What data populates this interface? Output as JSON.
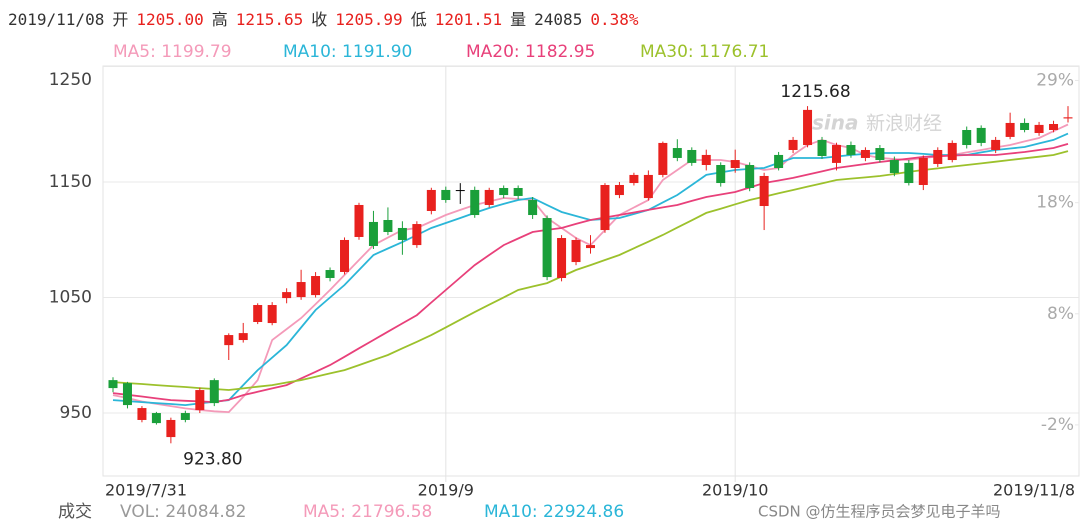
{
  "quote": [
    {
      "text": "2019/11/08",
      "color": "#333333"
    },
    {
      "text": "开",
      "color": "#333333"
    },
    {
      "text": "1205.00",
      "color": "#e8211e"
    },
    {
      "text": "高",
      "color": "#333333"
    },
    {
      "text": "1215.65",
      "color": "#e8211e"
    },
    {
      "text": "收",
      "color": "#333333"
    },
    {
      "text": "1205.99",
      "color": "#e8211e"
    },
    {
      "text": "低",
      "color": "#333333"
    },
    {
      "text": "1201.51",
      "color": "#e8211e"
    },
    {
      "text": "量",
      "color": "#333333"
    },
    {
      "text": "24085",
      "color": "#333333"
    },
    {
      "text": "0.38%",
      "color": "#e8211e"
    }
  ],
  "chart_data": {
    "type": "candlestick",
    "categories": [
      "2019/7/31",
      null,
      null,
      null,
      null,
      null,
      null,
      null,
      null,
      null,
      null,
      null,
      null,
      null,
      null,
      null,
      null,
      null,
      null,
      null,
      null,
      null,
      null,
      "2019/9",
      null,
      null,
      null,
      null,
      null,
      null,
      null,
      null,
      null,
      null,
      null,
      null,
      null,
      null,
      null,
      null,
      null,
      null,
      null,
      "2019/10",
      null,
      null,
      null,
      null,
      null,
      null,
      null,
      null,
      null,
      null,
      null,
      null,
      null,
      null,
      null,
      null,
      null,
      null,
      null,
      null,
      null,
      null,
      "2019/11/8"
    ],
    "open": [
      978.5,
      975.9,
      944,
      950,
      929.2,
      950,
      952.6,
      978.5,
      1008.8,
      1013.2,
      1028.8,
      1027.9,
      1049.5,
      1050.4,
      1052.1,
      1073.8,
      1072.1,
      1102.4,
      1115.4,
      1117.1,
      1110.2,
      1095.4,
      1124.9,
      1143.1,
      1143,
      1143.1,
      1130.1,
      1144.8,
      1144.8,
      1134.4,
      1118.8,
      1066.9,
      1080.7,
      1092.8,
      1108.4,
      1138.7,
      1149.1,
      1136.1,
      1156.1,
      1179.4,
      1177.7,
      1164.7,
      1164.7,
      1162.1,
      1164.7,
      1129.2,
      1173.4,
      1177.7,
      1182,
      1186.4,
      1166.5,
      1182,
      1170.8,
      1179.4,
      1169,
      1166.5,
      1147.4,
      1165.6,
      1169,
      1195,
      1196.8,
      1177.7,
      1189,
      1201.1,
      1192.4,
      1195,
      1205
    ],
    "high": [
      981,
      977,
      956,
      951,
      946,
      952,
      972,
      980,
      1019,
      1028,
      1045,
      1046,
      1058,
      1074,
      1072,
      1076,
      1102,
      1132,
      1125,
      1128,
      1116,
      1116,
      1145,
      1146,
      1149,
      1146,
      1145,
      1147,
      1147,
      1137,
      1121,
      1104,
      1102,
      1104,
      1149,
      1150,
      1158,
      1160,
      1185,
      1187,
      1180,
      1178,
      1167,
      1178,
      1167,
      1158,
      1176,
      1189,
      1215.68,
      1189,
      1184,
      1185,
      1180,
      1182,
      1172,
      1169,
      1173,
      1180,
      1186,
      1198,
      1199,
      1189,
      1210,
      1205,
      1202,
      1203,
      1215.65
    ],
    "low": [
      968,
      954,
      942,
      940,
      923.8,
      942,
      950,
      956,
      995.9,
      1011,
      1027,
      1026,
      1045,
      1048,
      1050,
      1064,
      1070,
      1100,
      1092,
      1104,
      1087,
      1093,
      1122,
      1132,
      1131,
      1119,
      1128,
      1136,
      1135,
      1118,
      1065,
      1064,
      1078,
      1088,
      1106,
      1136,
      1147,
      1134,
      1154,
      1168,
      1164,
      1160,
      1146,
      1158,
      1142,
      1108.4,
      1160,
      1175,
      1180,
      1170,
      1160,
      1171,
      1168,
      1167,
      1155,
      1147,
      1143,
      1163,
      1167,
      1179,
      1181,
      1175,
      1187,
      1193,
      1190,
      1193,
      1201.51
    ],
    "close": [
      971.6,
      956.9,
      954.3,
      941.3,
      944,
      944,
      969.9,
      958.6,
      1017.5,
      1019.2,
      1043.5,
      1043.5,
      1054.7,
      1063.4,
      1068.6,
      1066.9,
      1099.8,
      1130.1,
      1094.6,
      1106.7,
      1099.8,
      1113.6,
      1143.1,
      1134.4,
      1143,
      1121.4,
      1143.1,
      1138.7,
      1137.9,
      1121.4,
      1067.7,
      1101.5,
      1099.8,
      1095.4,
      1147.4,
      1147.4,
      1156.1,
      1156.1,
      1183.8,
      1170.8,
      1166.5,
      1173.4,
      1149.1,
      1169,
      1144.8,
      1155.2,
      1162.1,
      1186.4,
      1212.4,
      1172.5,
      1182,
      1173.4,
      1177.7,
      1169,
      1157.8,
      1149.1,
      1170.8,
      1177.7,
      1183.8,
      1182,
      1183.8,
      1186.4,
      1201.1,
      1195,
      1199.4,
      1200.2,
      1205.99
    ],
    "up_color": "#e8211e",
    "down_color": "#1a9f3a",
    "flat_color": "#000000",
    "series": [
      {
        "name": "MA5: 1199.79",
        "color": "#f49ab9",
        "values": [
          965.5,
          963,
          960,
          958,
          956,
          954,
          952.6,
          951.5,
          950.8,
          964,
          978.5,
          1013.2,
          1022.7,
          1032.2,
          1044.3,
          1056.5,
          1069.5,
          1082.5,
          1095.4,
          1101.9,
          1108.4,
          1110.2,
          1115.8,
          1121.4,
          1125.8,
          1130.1,
          1133.1,
          1136.1,
          1135.3,
          1134.4,
          1118.8,
          1110.2,
          1101.5,
          1095.4,
          1108.4,
          1121.4,
          1127.9,
          1134.4,
          1151.7,
          1160.4,
          1169,
          1169,
          1169,
          1167.3,
          1163.9,
          1160.4,
          1162.1,
          1173.4,
          1182,
          1186.4,
          1182,
          1179.4,
          1173.4,
          1170.8,
          1169.9,
          1169,
          1170.8,
          1172.1,
          1173.4,
          1175.6,
          1177.7,
          1179.9,
          1182,
          1185.1,
          1188.1,
          1194,
          1199.79
        ]
      },
      {
        "name": "MA10: 1191.90",
        "color": "#2bb6d8",
        "values": [
          961.2,
          960.3,
          959.5,
          958.6,
          957.8,
          956.9,
          958.3,
          959.8,
          961.2,
          974.2,
          987.2,
          998,
          1008.8,
          1024,
          1039.2,
          1050,
          1060.8,
          1073.8,
          1086.8,
          1092.4,
          1098,
          1104.1,
          1110.2,
          1114.5,
          1118.8,
          1123.2,
          1127.5,
          1131,
          1134.4,
          1136.1,
          1130,
          1124,
          1120.6,
          1117.1,
          1118,
          1118.8,
          1122.3,
          1125.8,
          1132.3,
          1138.7,
          1147.4,
          1156.1,
          1158.3,
          1160.4,
          1161.3,
          1162.1,
          1166.5,
          1170.8,
          1170.8,
          1170.8,
          1172.1,
          1173.4,
          1174.3,
          1175.1,
          1175.1,
          1175.1,
          1174.3,
          1173.4,
          1173.4,
          1173.4,
          1175.6,
          1177.7,
          1179,
          1180.3,
          1183.4,
          1186.4,
          1191.9
        ]
      },
      {
        "name": "MA20: 1182.95",
        "color": "#e8407a",
        "values": [
          967.3,
          965.8,
          964.3,
          962.7,
          961.2,
          960.6,
          960.1,
          959.5,
          961.5,
          965.5,
          968.4,
          971.3,
          974.2,
          980,
          985.7,
          991.5,
          998.7,
          1006,
          1013.2,
          1020.4,
          1027.6,
          1034.8,
          1045.7,
          1056.5,
          1067.3,
          1078.1,
          1086.8,
          1095.4,
          1101.1,
          1106.7,
          1108.5,
          1110.2,
          1113.7,
          1117.1,
          1119.3,
          1121.4,
          1123.6,
          1125.8,
          1128,
          1130.1,
          1133.6,
          1137,
          1139.2,
          1141.3,
          1145.2,
          1149.1,
          1151.3,
          1153.5,
          1156.4,
          1159.2,
          1162.1,
          1163.8,
          1165.6,
          1167.3,
          1168.8,
          1170.2,
          1171.7,
          1172.3,
          1172.8,
          1173.4,
          1173.4,
          1173.4,
          1174.7,
          1176,
          1177.7,
          1179.4,
          1182.95
        ]
      },
      {
        "name": "MA30: 1176.71",
        "color": "#9cc12c",
        "values": [
          976.8,
          975.9,
          975.1,
          974.2,
          973.3,
          972.5,
          971.6,
          970.8,
          969.9,
          971.3,
          972.8,
          974.2,
          976.4,
          978.5,
          981.4,
          984.3,
          987.2,
          991.5,
          995.9,
          1000.2,
          1006,
          1011.7,
          1017.5,
          1024.1,
          1030.8,
          1037.4,
          1043.8,
          1050.1,
          1056.5,
          1059.5,
          1062.5,
          1068.2,
          1073.8,
          1078.1,
          1082.5,
          1086.8,
          1092.6,
          1098.3,
          1104.1,
          1110.5,
          1116.8,
          1123.2,
          1126.9,
          1130.7,
          1134.4,
          1137.3,
          1140.2,
          1143.1,
          1146,
          1148.8,
          1151.7,
          1152.9,
          1154,
          1155.2,
          1156.9,
          1158.7,
          1160.4,
          1161.8,
          1163.3,
          1164.7,
          1166.1,
          1167.6,
          1169,
          1170.5,
          1171.9,
          1173.4,
          1176.71
        ]
      }
    ],
    "ylim": [
      895.5,
      1250.4
    ],
    "yticks": [
      950,
      1050,
      1150,
      1250
    ],
    "y2lim": [
      -6.6,
      30.3
    ],
    "y2ticks": [
      {
        "value": 29,
        "label": "29%"
      },
      {
        "value": 18,
        "label": "18%"
      },
      {
        "value": 8,
        "label": "8%"
      },
      {
        "value": -2,
        "label": "-2%"
      }
    ],
    "grid": true,
    "annotations": [
      {
        "text": "1215.68"
      },
      {
        "text": "923.80"
      }
    ]
  },
  "volume_legend": [
    {
      "text": "成交",
      "color": "#555555"
    },
    {
      "text": "VOL: 24084.82",
      "color": "#999999"
    },
    {
      "text": "MA5: 21796.58",
      "color": "#f49ab9"
    },
    {
      "text": "MA10: 22924.86",
      "color": "#2bb6d8"
    }
  ],
  "watermark": {
    "logo": "sina",
    "text": "新浪财经"
  },
  "footer": "CSDN @仿生程序员会梦见电子羊吗"
}
